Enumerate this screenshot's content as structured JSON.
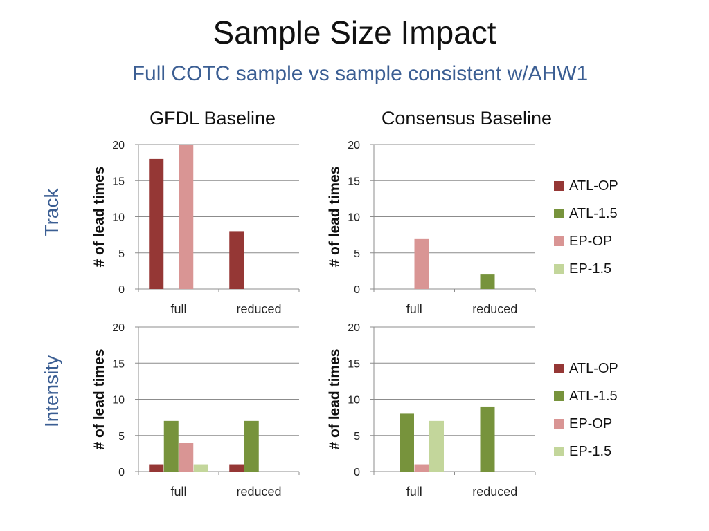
{
  "title": "Sample Size Impact",
  "subtitle": "Full COTC sample vs sample consistent w/AHW1",
  "column_headers": [
    "GFDL Baseline",
    "Consensus Baseline"
  ],
  "row_labels": [
    "Track",
    "Intensity"
  ],
  "colors": {
    "ATL-OP": "#953735",
    "ATL-1.5": "#77933c",
    "EP-OP": "#d99594",
    "EP-1.5": "#c3d69b",
    "grid": "#8c8c8c"
  },
  "legend": [
    "ATL-OP",
    "ATL-1.5",
    "EP-OP",
    "EP-1.5"
  ],
  "chart_data": [
    {
      "id": "track-gfdl",
      "type": "bar",
      "ylabel": "# of lead times",
      "ylim": [
        0,
        20
      ],
      "yticks": [
        0,
        5,
        10,
        15,
        20
      ],
      "categories": [
        "full",
        "reduced"
      ],
      "series": [
        {
          "name": "ATL-OP",
          "values": [
            18,
            8
          ]
        },
        {
          "name": "ATL-1.5",
          "values": [
            0,
            0
          ]
        },
        {
          "name": "EP-OP",
          "values": [
            20,
            0
          ]
        },
        {
          "name": "EP-1.5",
          "values": [
            0,
            0
          ]
        }
      ]
    },
    {
      "id": "track-consensus",
      "type": "bar",
      "ylabel": "# of lead times",
      "ylim": [
        0,
        20
      ],
      "yticks": [
        0,
        5,
        10,
        15,
        20
      ],
      "categories": [
        "full",
        "reduced"
      ],
      "series": [
        {
          "name": "ATL-OP",
          "values": [
            0,
            0
          ]
        },
        {
          "name": "ATL-1.5",
          "values": [
            0,
            2
          ]
        },
        {
          "name": "EP-OP",
          "values": [
            7,
            0
          ]
        },
        {
          "name": "EP-1.5",
          "values": [
            0,
            0
          ]
        }
      ]
    },
    {
      "id": "intensity-gfdl",
      "type": "bar",
      "ylabel": "# of lead times",
      "ylim": [
        0,
        20
      ],
      "yticks": [
        0,
        5,
        10,
        15,
        20
      ],
      "categories": [
        "full",
        "reduced"
      ],
      "series": [
        {
          "name": "ATL-OP",
          "values": [
            1,
            1
          ]
        },
        {
          "name": "ATL-1.5",
          "values": [
            7,
            7
          ]
        },
        {
          "name": "EP-OP",
          "values": [
            4,
            0
          ]
        },
        {
          "name": "EP-1.5",
          "values": [
            1,
            0
          ]
        }
      ]
    },
    {
      "id": "intensity-consensus",
      "type": "bar",
      "ylabel": "# of lead times",
      "ylim": [
        0,
        20
      ],
      "yticks": [
        0,
        5,
        10,
        15,
        20
      ],
      "categories": [
        "full",
        "reduced"
      ],
      "series": [
        {
          "name": "ATL-OP",
          "values": [
            0,
            0
          ]
        },
        {
          "name": "ATL-1.5",
          "values": [
            8,
            9
          ]
        },
        {
          "name": "EP-OP",
          "values": [
            1,
            0
          ]
        },
        {
          "name": "EP-1.5",
          "values": [
            7,
            0
          ]
        }
      ]
    }
  ]
}
